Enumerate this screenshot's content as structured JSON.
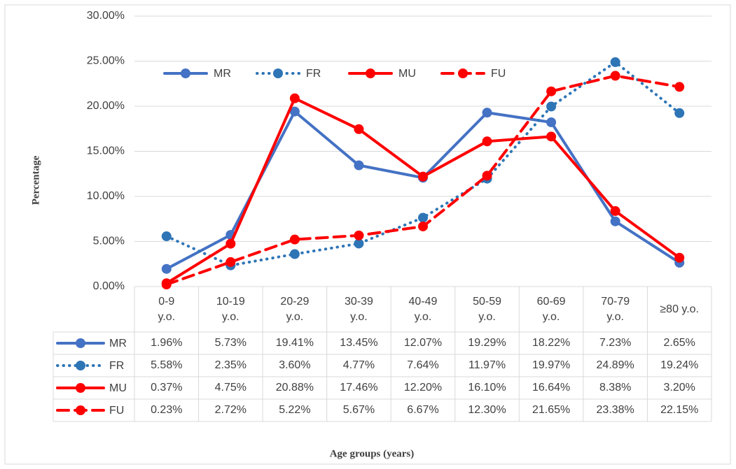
{
  "chart_data": {
    "type": "line",
    "y_axis_label": "Percentage",
    "x_axis_label": "Age groups (years)",
    "categories": [
      "0-9\ny.o.",
      "10-19\ny.o.",
      "20-29\ny.o.",
      "30-39\ny.o.",
      "40-49\ny.o.",
      "50-59\ny.o.",
      "60-69\ny.o.",
      "70-79\ny.o.",
      "≥80 y.o."
    ],
    "series": [
      {
        "name": "MR",
        "color": "#4472c4",
        "style": "solid",
        "values": [
          1.96,
          5.73,
          19.41,
          13.45,
          12.07,
          19.29,
          18.22,
          7.23,
          2.65
        ],
        "value_labels": [
          "1.96%",
          "5.73%",
          "19.41%",
          "13.45%",
          "12.07%",
          "19.29%",
          "18.22%",
          "7.23%",
          "2.65%"
        ]
      },
      {
        "name": "FR",
        "color": "#2e75b6",
        "style": "dotted",
        "values": [
          5.58,
          2.35,
          3.6,
          4.77,
          7.64,
          11.97,
          19.97,
          24.89,
          19.24
        ],
        "value_labels": [
          "5.58%",
          "2.35%",
          "3.60%",
          "4.77%",
          "7.64%",
          "11.97%",
          "19.97%",
          "24.89%",
          "19.24%"
        ]
      },
      {
        "name": "MU",
        "color": "#ff0000",
        "style": "solid",
        "values": [
          0.37,
          4.75,
          20.88,
          17.46,
          12.2,
          16.1,
          16.64,
          8.38,
          3.2
        ],
        "value_labels": [
          "0.37%",
          "4.75%",
          "20.88%",
          "17.46%",
          "12.20%",
          "16.10%",
          "16.64%",
          "8.38%",
          "3.20%"
        ]
      },
      {
        "name": "FU",
        "color": "#ff0000",
        "style": "dashed",
        "values": [
          0.23,
          2.72,
          5.22,
          5.67,
          6.67,
          12.3,
          21.65,
          23.38,
          22.15
        ],
        "value_labels": [
          "0.23%",
          "2.72%",
          "5.22%",
          "5.67%",
          "6.67%",
          "12.30%",
          "21.65%",
          "23.38%",
          "22.15%"
        ]
      }
    ],
    "ylim": [
      0,
      30
    ],
    "yticks": [
      {
        "value": 0,
        "label": "0.00%"
      },
      {
        "value": 5,
        "label": "5.00%"
      },
      {
        "value": 10,
        "label": "10.00%"
      },
      {
        "value": 15,
        "label": "15.00%"
      },
      {
        "value": 20,
        "label": "20.00%"
      },
      {
        "value": 25,
        "label": "25.00%"
      },
      {
        "value": 30,
        "label": "30.00%"
      }
    ],
    "grid": true,
    "legend": "top",
    "data_table": true
  }
}
